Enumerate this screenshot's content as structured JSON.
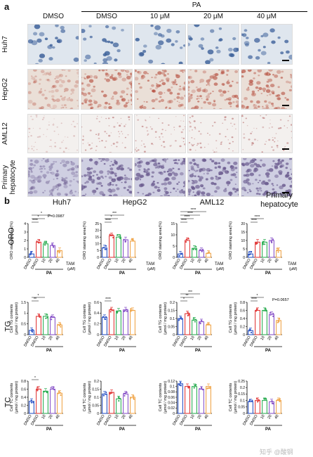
{
  "panel_a": {
    "letter": "a",
    "pa_label": "PA",
    "columns": [
      "DMSO",
      "DMSO",
      "10 μM",
      "20 μM",
      "40 μM"
    ],
    "rows": [
      {
        "label": "Huh7",
        "bg": "#dfe6ee",
        "dot": "#3b5f99",
        "style": "cells"
      },
      {
        "label": "HepG2",
        "bg": "#eadfd7",
        "dot": "#b44a3a",
        "style": "stain"
      },
      {
        "label": "AML12",
        "bg": "#f3f0ee",
        "dot": "#c48a8a",
        "style": "sparse"
      },
      {
        "label": "Primary hepatocyte",
        "bg": "#cfcfe2",
        "dot": "#6a5a8e",
        "style": "dense"
      }
    ]
  },
  "panel_b": {
    "letter": "b",
    "groups": [
      "Huh7",
      "HepG2",
      "AML12",
      "Primary\nhepatocyte"
    ],
    "row_titles": [
      "ORO",
      "TG",
      "TC"
    ],
    "x_labels": [
      "DMSO",
      "DMSO",
      "10",
      "20",
      "40"
    ],
    "pa_label": "PA",
    "tam_label": "TAM",
    "tam_unit": "(μM)",
    "colors": [
      "#2e56c7",
      "#e23b3b",
      "#2fae55",
      "#8a56c9",
      "#f0a64b"
    ],
    "ylabels": {
      "oro": "ORO staining area(%)",
      "tg1": "Cell TG contents",
      "tg2": "(μmol / mg protein)",
      "tc1": "Cell TC contents",
      "tc2": "(μmol / mg protein)"
    },
    "p_labels": {
      "huh7_oro": "P=0.0987",
      "prim_tg": "P=0.0657"
    }
  },
  "chart_data": [
    {
      "type": "bar",
      "title": "Huh7",
      "row": "ORO",
      "categories": [
        "DMSO",
        "DMSO",
        "10",
        "20",
        "40"
      ],
      "values": [
        0.4,
        1.8,
        1.6,
        1.4,
        0.8
      ],
      "ylim": [
        0,
        4
      ],
      "yticks": [
        0,
        1,
        2,
        3,
        4
      ],
      "sig": [
        "****",
        "*",
        "*"
      ]
    },
    {
      "type": "bar",
      "title": "HepG2",
      "row": "ORO",
      "categories": [
        "DMSO",
        "DMSO",
        "10",
        "20",
        "40"
      ],
      "values": [
        7,
        16,
        15,
        13,
        12
      ],
      "ylim": [
        0,
        25
      ],
      "yticks": [
        0,
        5,
        10,
        15,
        20,
        25
      ],
      "sig": [
        "****",
        "*",
        "***"
      ]
    },
    {
      "type": "bar",
      "title": "AML12",
      "row": "ORO",
      "categories": [
        "DMSO",
        "DMSO",
        "10",
        "20",
        "40"
      ],
      "values": [
        1.5,
        7.5,
        4,
        3,
        1.8
      ],
      "ylim": [
        0,
        15
      ],
      "yticks": [
        0,
        5,
        10,
        15
      ],
      "sig": [
        "****",
        "****",
        "****",
        "****"
      ]
    },
    {
      "type": "bar",
      "title": "Primary hepatocyte",
      "row": "ORO",
      "categories": [
        "DMSO",
        "DMSO",
        "10",
        "20",
        "40"
      ],
      "values": [
        2,
        9,
        9,
        10,
        4
      ],
      "ylim": [
        0,
        20
      ],
      "yticks": [
        0,
        5,
        10,
        15,
        20
      ],
      "sig": [
        "****",
        "****"
      ]
    },
    {
      "type": "bar",
      "title": "Huh7",
      "row": "TG",
      "categories": [
        "DMSO",
        "DMSO",
        "10",
        "20",
        "40"
      ],
      "values": [
        0.2,
        0.85,
        0.85,
        0.8,
        0.45
      ],
      "ylim": [
        0,
        1.5
      ],
      "yticks": [
        0,
        0.5,
        1.0,
        1.5
      ],
      "sig": [
        "**",
        "*"
      ]
    },
    {
      "type": "bar",
      "title": "HepG2",
      "row": "TG",
      "categories": [
        "DMSO",
        "DMSO",
        "10",
        "20",
        "40"
      ],
      "values": [
        0.32,
        0.46,
        0.44,
        0.46,
        0.45
      ],
      "ylim": [
        0,
        0.6
      ],
      "yticks": [
        0,
        0.2,
        0.4,
        0.6
      ],
      "sig": [
        "****"
      ]
    },
    {
      "type": "bar",
      "title": "AML12",
      "row": "TG",
      "categories": [
        "DMSO",
        "DMSO",
        "10",
        "20",
        "40"
      ],
      "values": [
        0.1,
        0.13,
        0.09,
        0.08,
        0.06
      ],
      "ylim": [
        0,
        0.2
      ],
      "yticks": [
        0,
        0.05,
        0.1,
        0.15,
        0.2
      ],
      "sig": [
        "*",
        "**",
        "***"
      ]
    },
    {
      "type": "bar",
      "title": "Primary hepatocyte",
      "row": "TG",
      "categories": [
        "DMSO",
        "DMSO",
        "10",
        "20",
        "40"
      ],
      "values": [
        0.1,
        0.6,
        0.6,
        0.5,
        0.35
      ],
      "ylim": [
        0,
        0.8
      ],
      "yticks": [
        0,
        0.2,
        0.4,
        0.6,
        0.8
      ],
      "sig": [
        "****",
        "*"
      ]
    },
    {
      "type": "bar",
      "title": "Huh7",
      "row": "TC",
      "categories": [
        "DMSO",
        "DMSO",
        "10",
        "20",
        "40"
      ],
      "values": [
        0.3,
        0.6,
        0.55,
        0.6,
        0.5
      ],
      "ylim": [
        0,
        0.8
      ],
      "yticks": [
        0,
        0.2,
        0.4,
        0.6,
        0.8
      ],
      "sig": [
        "*"
      ]
    },
    {
      "type": "bar",
      "title": "HepG2",
      "row": "TC",
      "categories": [
        "DMSO",
        "DMSO",
        "10",
        "20",
        "40"
      ],
      "values": [
        0.12,
        0.13,
        0.09,
        0.12,
        0.1
      ],
      "ylim": [
        0,
        0.2
      ],
      "yticks": [
        0,
        0.05,
        0.1,
        0.15,
        0.2
      ],
      "sig": []
    },
    {
      "type": "bar",
      "title": "AML12",
      "row": "TC",
      "categories": [
        "DMSO",
        "DMSO",
        "10",
        "20",
        "40"
      ],
      "values": [
        0.11,
        0.1,
        0.1,
        0.09,
        0.1
      ],
      "ylim": [
        0,
        0.12
      ],
      "yticks": [
        0,
        0.02,
        0.04,
        0.06,
        0.08,
        0.1,
        0.12
      ],
      "sig": []
    },
    {
      "type": "bar",
      "title": "Primary hepatocyte",
      "row": "TC",
      "categories": [
        "DMSO",
        "DMSO",
        "10",
        "20",
        "40"
      ],
      "values": [
        0.09,
        0.1,
        0.1,
        0.09,
        0.1
      ],
      "ylim": [
        0,
        0.25
      ],
      "yticks": [
        0,
        0.05,
        0.1,
        0.15,
        0.2,
        0.25
      ],
      "sig": []
    }
  ],
  "watermark": "知乎 @酸钢"
}
